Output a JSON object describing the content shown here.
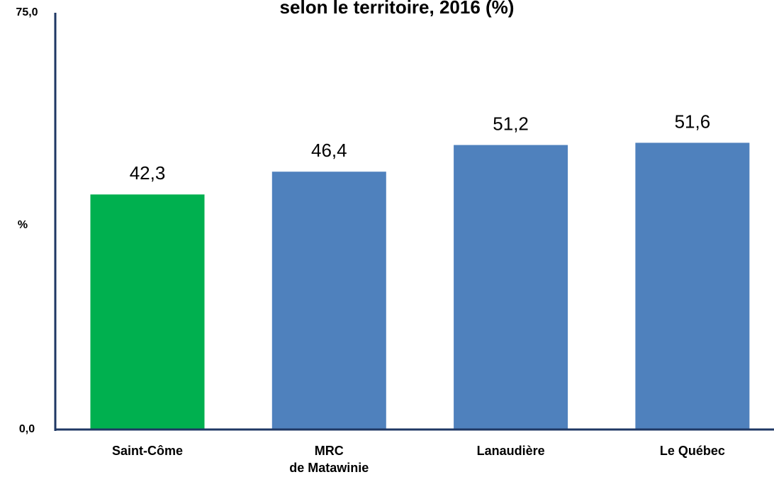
{
  "chart_data": {
    "type": "bar",
    "title": "selon le territoire, 2016 (%)",
    "y_label": "%",
    "categories": [
      "Saint-Côme",
      "MRC\nde Matawinie",
      "Lanaudière",
      "Le Québec"
    ],
    "values": [
      42.3,
      46.4,
      51.2,
      51.6
    ],
    "value_labels": [
      "42,3",
      "46,4",
      "51,2",
      "51,6"
    ],
    "colors": [
      "#00b04f",
      "#4f81bd",
      "#4f81bd",
      "#4f81bd"
    ],
    "ylim": [
      0,
      75
    ],
    "yticks": [
      {
        "value": 0,
        "label": "0,0"
      },
      {
        "value": 75,
        "label": "75,0"
      }
    ],
    "grid": false
  }
}
